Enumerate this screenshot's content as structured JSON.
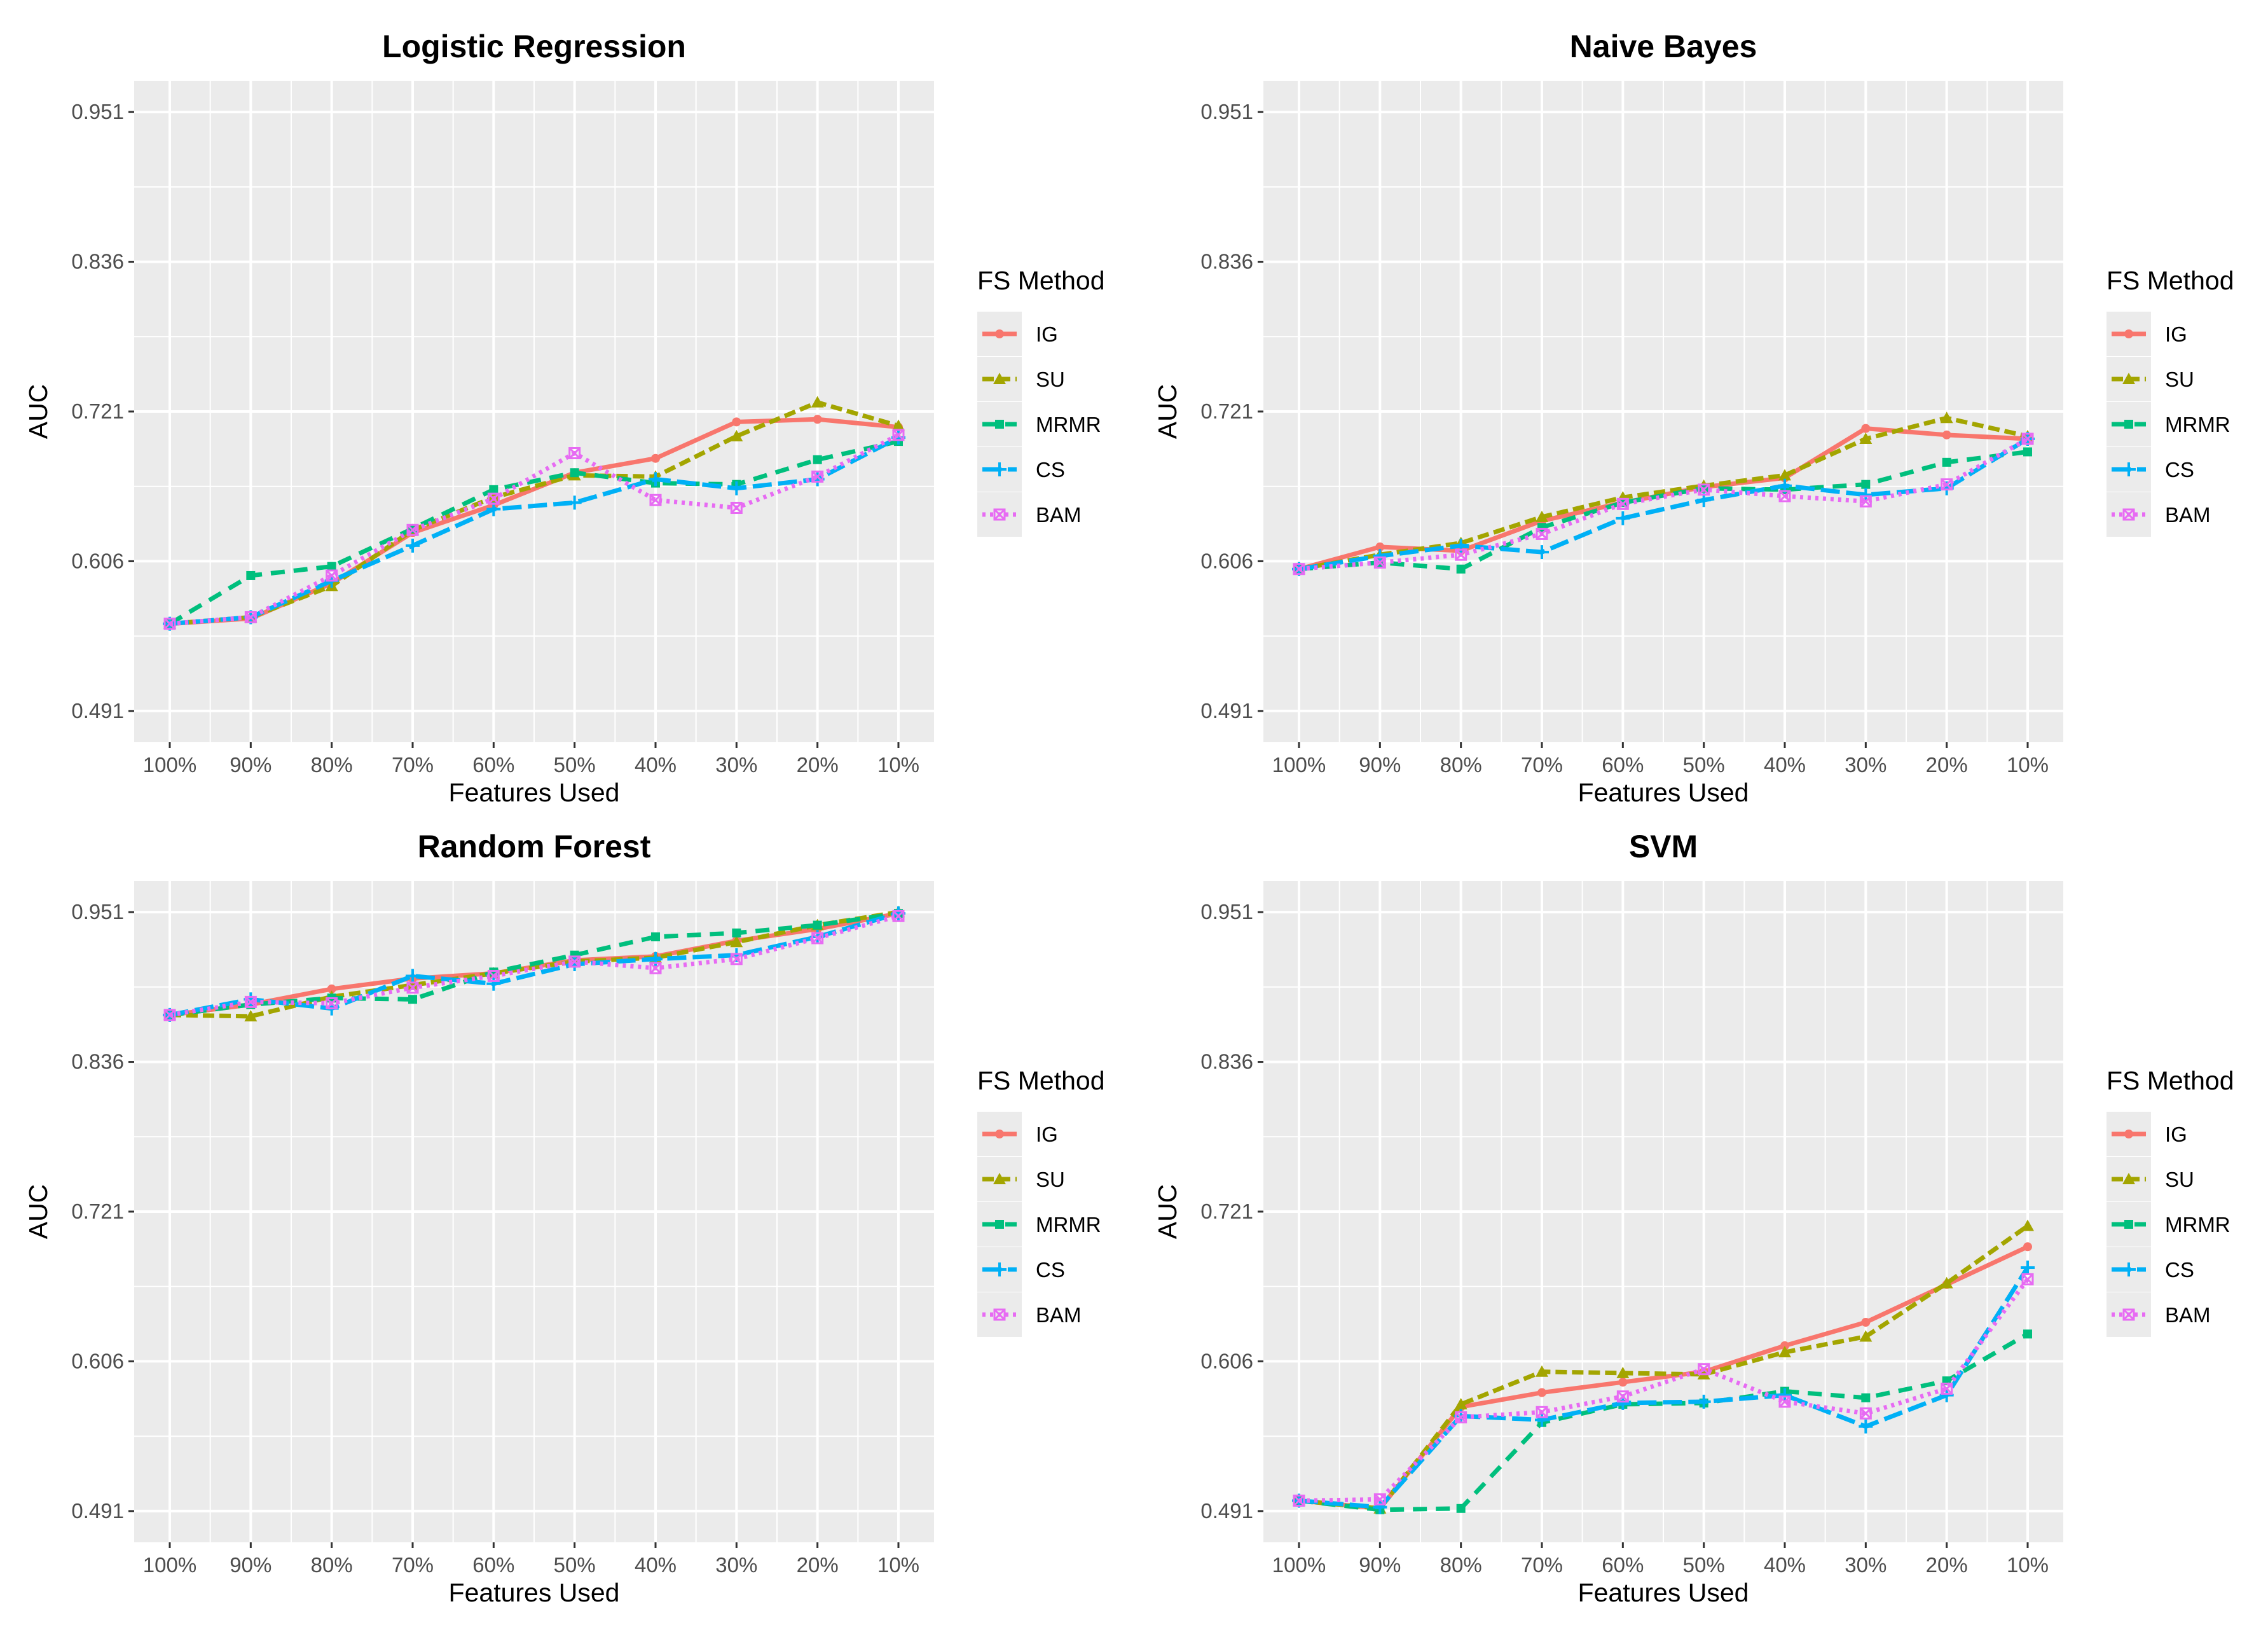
{
  "chart_data": [
    {
      "type": "line",
      "title": "Logistic Regression",
      "xlabel": "Features Used",
      "ylabel": "AUC",
      "categories": [
        "100%",
        "90%",
        "80%",
        "70%",
        "60%",
        "50%",
        "40%",
        "30%",
        "20%",
        "10%"
      ],
      "yticks": [
        "0.491",
        "0.606",
        "0.721",
        "0.836",
        "0.951"
      ],
      "ylim": [
        0.467,
        0.975
      ],
      "legend_title": "FS Method",
      "legend_position": "right",
      "series": [
        {
          "name": "IG",
          "values": [
            0.558,
            0.562,
            0.589,
            0.628,
            0.649,
            0.674,
            0.685,
            0.713,
            0.715,
            0.709
          ]
        },
        {
          "name": "SU",
          "values": [
            0.558,
            0.563,
            0.587,
            0.63,
            0.655,
            0.672,
            0.671,
            0.702,
            0.728,
            0.71
          ]
        },
        {
          "name": "MRMR",
          "values": [
            0.558,
            0.595,
            0.602,
            0.631,
            0.661,
            0.674,
            0.666,
            0.665,
            0.684,
            0.698
          ]
        },
        {
          "name": "CS",
          "values": [
            0.558,
            0.563,
            0.591,
            0.618,
            0.646,
            0.651,
            0.669,
            0.662,
            0.669,
            0.701
          ]
        },
        {
          "name": "BAM",
          "values": [
            0.558,
            0.563,
            0.595,
            0.63,
            0.654,
            0.689,
            0.653,
            0.647,
            0.671,
            0.703
          ]
        }
      ]
    },
    {
      "type": "line",
      "title": "Naive Bayes",
      "xlabel": "Features Used",
      "ylabel": "AUC",
      "categories": [
        "100%",
        "90%",
        "80%",
        "70%",
        "60%",
        "50%",
        "40%",
        "30%",
        "20%",
        "10%"
      ],
      "yticks": [
        "0.491",
        "0.606",
        "0.721",
        "0.836",
        "0.951"
      ],
      "ylim": [
        0.467,
        0.975
      ],
      "legend_title": "FS Method",
      "legend_position": "right",
      "series": [
        {
          "name": "IG",
          "values": [
            0.6,
            0.617,
            0.614,
            0.637,
            0.651,
            0.663,
            0.67,
            0.708,
            0.703,
            0.7
          ]
        },
        {
          "name": "SU",
          "values": [
            0.6,
            0.611,
            0.62,
            0.64,
            0.655,
            0.664,
            0.672,
            0.7,
            0.716,
            0.702
          ]
        },
        {
          "name": "MRMR",
          "values": [
            0.6,
            0.605,
            0.6,
            0.632,
            0.651,
            0.662,
            0.661,
            0.665,
            0.682,
            0.69
          ]
        },
        {
          "name": "CS",
          "values": [
            0.6,
            0.61,
            0.618,
            0.613,
            0.639,
            0.653,
            0.664,
            0.657,
            0.662,
            0.7
          ]
        },
        {
          "name": "BAM",
          "values": [
            0.6,
            0.605,
            0.611,
            0.627,
            0.65,
            0.661,
            0.656,
            0.652,
            0.665,
            0.7
          ]
        }
      ]
    },
    {
      "type": "line",
      "title": "Random Forest",
      "xlabel": "Features Used",
      "ylabel": "AUC",
      "categories": [
        "100%",
        "90%",
        "80%",
        "70%",
        "60%",
        "50%",
        "40%",
        "30%",
        "20%",
        "10%"
      ],
      "yticks": [
        "0.491",
        "0.606",
        "0.721",
        "0.836",
        "0.951"
      ],
      "ylim": [
        0.467,
        0.975
      ],
      "legend_title": "FS Method",
      "legend_position": "right",
      "series": [
        {
          "name": "IG",
          "values": [
            0.872,
            0.88,
            0.892,
            0.9,
            0.904,
            0.914,
            0.917,
            0.929,
            0.938,
            0.95
          ]
        },
        {
          "name": "SU",
          "values": [
            0.872,
            0.871,
            0.886,
            0.895,
            0.904,
            0.913,
            0.916,
            0.928,
            0.941,
            0.951
          ]
        },
        {
          "name": "MRMR",
          "values": [
            0.872,
            0.88,
            0.885,
            0.884,
            0.905,
            0.918,
            0.932,
            0.935,
            0.941,
            0.95
          ]
        },
        {
          "name": "CS",
          "values": [
            0.872,
            0.884,
            0.877,
            0.902,
            0.896,
            0.911,
            0.915,
            0.918,
            0.932,
            0.95
          ]
        },
        {
          "name": "BAM",
          "values": [
            0.872,
            0.882,
            0.881,
            0.893,
            0.902,
            0.913,
            0.908,
            0.915,
            0.931,
            0.948
          ]
        }
      ]
    },
    {
      "type": "line",
      "title": "SVM",
      "xlabel": "Features Used",
      "ylabel": "AUC",
      "categories": [
        "100%",
        "90%",
        "80%",
        "70%",
        "60%",
        "50%",
        "40%",
        "30%",
        "20%",
        "10%"
      ],
      "yticks": [
        "0.491",
        "0.606",
        "0.721",
        "0.836",
        "0.951"
      ],
      "ylim": [
        0.467,
        0.975
      ],
      "legend_title": "FS Method",
      "legend_position": "right",
      "series": [
        {
          "name": "IG",
          "values": [
            0.499,
            0.493,
            0.571,
            0.582,
            0.59,
            0.598,
            0.618,
            0.636,
            0.665,
            0.694
          ]
        },
        {
          "name": "SU",
          "values": [
            0.499,
            0.493,
            0.573,
            0.598,
            0.597,
            0.596,
            0.613,
            0.625,
            0.666,
            0.71
          ]
        },
        {
          "name": "MRMR",
          "values": [
            0.499,
            0.492,
            0.493,
            0.559,
            0.573,
            0.574,
            0.583,
            0.578,
            0.591,
            0.627
          ]
        },
        {
          "name": "CS",
          "values": [
            0.499,
            0.494,
            0.564,
            0.561,
            0.574,
            0.575,
            0.58,
            0.556,
            0.58,
            0.678
          ]
        },
        {
          "name": "BAM",
          "values": [
            0.499,
            0.5,
            0.563,
            0.567,
            0.579,
            0.6,
            0.575,
            0.566,
            0.585,
            0.669
          ]
        }
      ]
    }
  ],
  "series_styles": [
    {
      "name": "IG",
      "color": "#f8766d",
      "dash": "none",
      "marker": "circle"
    },
    {
      "name": "SU",
      "color": "#a3a500",
      "dash": "18,8",
      "marker": "triangle"
    },
    {
      "name": "MRMR",
      "color": "#00bf7d",
      "dash": "22,14",
      "marker": "square"
    },
    {
      "name": "CS",
      "color": "#00b0f6",
      "dash": "30,10",
      "marker": "plus"
    },
    {
      "name": "BAM",
      "color": "#e76bf3",
      "dash": "5,7",
      "marker": "boxx"
    }
  ],
  "colors": {
    "panel_bg": "#ebebeb",
    "grid": "#ffffff",
    "tick_text": "#4d4d4d"
  }
}
